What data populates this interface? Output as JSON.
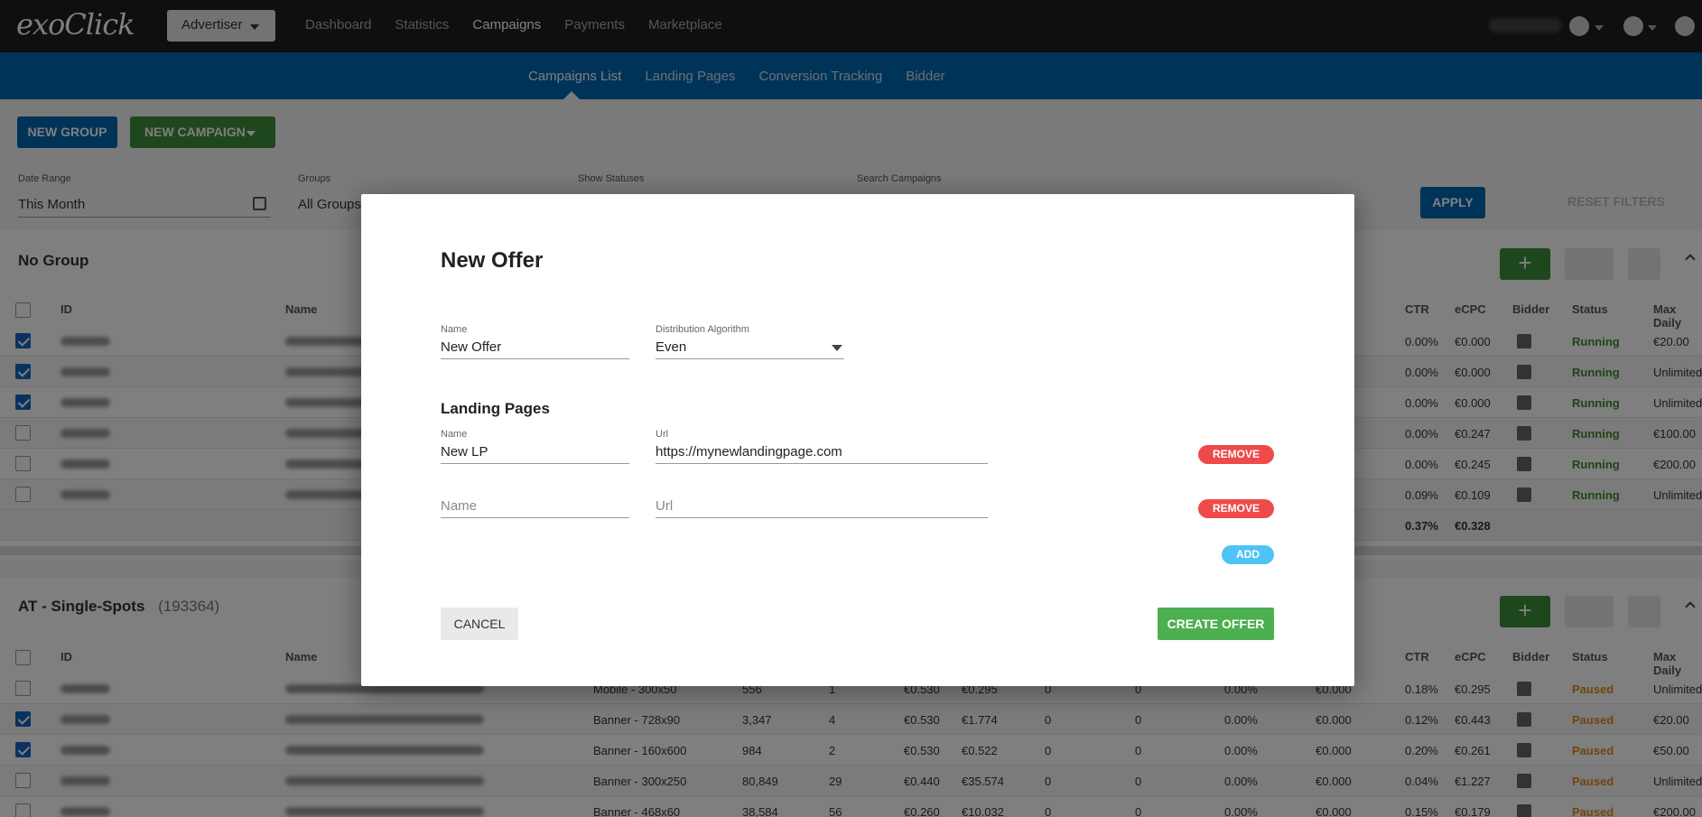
{
  "app": {
    "logo": "exoClick",
    "account_button": "Advertiser"
  },
  "topnav": [
    "Dashboard",
    "Statistics",
    "Campaigns",
    "Payments",
    "Marketplace"
  ],
  "subnav": [
    "Campaigns List",
    "Landing Pages",
    "Conversion Tracking",
    "Bidder"
  ],
  "actions": {
    "new_group": "NEW GROUP",
    "new_campaign": "NEW CAMPAIGN"
  },
  "filters": {
    "date_range_label": "Date Range",
    "date_range_value": "This Month",
    "groups_label": "Groups",
    "groups_value": "All Groups",
    "statuses_label": "Show Statuses",
    "search_label": "Search Campaigns",
    "apply": "APPLY",
    "reset": "RESET FILTERS"
  },
  "groups": [
    {
      "title": "No Group",
      "count": ""
    },
    {
      "title": "AT - Single-Spots",
      "count": "(193364)"
    }
  ],
  "columns": {
    "id": "ID",
    "name": "Name",
    "ctr": "CTR",
    "ecpc": "eCPC",
    "bidder": "Bidder",
    "status": "Status",
    "max_daily": "Max Daily"
  },
  "group1_rows": [
    {
      "checked": true,
      "ctr": "0.00%",
      "ecpc": "€0.000",
      "status": "Running",
      "max": "€20.00"
    },
    {
      "checked": true,
      "ctr": "0.00%",
      "ecpc": "€0.000",
      "status": "Running",
      "max": "Unlimited"
    },
    {
      "checked": true,
      "ctr": "0.00%",
      "ecpc": "€0.000",
      "status": "Running",
      "max": "Unlimited"
    },
    {
      "checked": false,
      "ctr": "0.00%",
      "ecpc": "€0.247",
      "status": "Running",
      "max": "€100.00"
    },
    {
      "checked": false,
      "ctr": "0.00%",
      "ecpc": "€0.245",
      "status": "Running",
      "max": "€200.00"
    },
    {
      "checked": false,
      "ctr": "0.09%",
      "ecpc": "€0.109",
      "status": "Running",
      "max": "Unlimited"
    }
  ],
  "group1_total": {
    "ctr": "0.37%",
    "ecpc": "€0.328"
  },
  "group2_rows": [
    {
      "checked": false,
      "format": "Mobile - 300x50",
      "imp": "556",
      "clk": "1",
      "bid": "€0.530",
      "spend": "€0.295",
      "c1": "0",
      "c2": "0",
      "conv": "0.00%",
      "cost": "€0.000",
      "ctr": "0.18%",
      "ecpc": "€0.295",
      "status": "Paused",
      "max": "Unlimited"
    },
    {
      "checked": true,
      "format": "Banner - 728x90",
      "imp": "3,347",
      "clk": "4",
      "bid": "€0.530",
      "spend": "€1.774",
      "c1": "0",
      "c2": "0",
      "conv": "0.00%",
      "cost": "€0.000",
      "ctr": "0.12%",
      "ecpc": "€0.443",
      "status": "Paused",
      "max": "€20.00"
    },
    {
      "checked": true,
      "format": "Banner - 160x600",
      "imp": "984",
      "clk": "2",
      "bid": "€0.530",
      "spend": "€0.522",
      "c1": "0",
      "c2": "0",
      "conv": "0.00%",
      "cost": "€0.000",
      "ctr": "0.20%",
      "ecpc": "€0.261",
      "status": "Paused",
      "max": "€50.00"
    },
    {
      "checked": false,
      "format": "Banner - 300x250",
      "imp": "80,849",
      "clk": "29",
      "bid": "€0.440",
      "spend": "€35.574",
      "c1": "0",
      "c2": "0",
      "conv": "0.00%",
      "cost": "€0.000",
      "ctr": "0.04%",
      "ecpc": "€1.227",
      "status": "Paused",
      "max": "Unlimited"
    },
    {
      "checked": false,
      "format": "Banner - 468x60",
      "imp": "38,584",
      "clk": "56",
      "bid": "€0.260",
      "spend": "€10.032",
      "c1": "0",
      "c2": "0",
      "conv": "0.00%",
      "cost": "€0.000",
      "ctr": "0.15%",
      "ecpc": "€0.179",
      "status": "Paused",
      "max": "€200.00"
    }
  ],
  "modal": {
    "title": "New Offer",
    "name_label": "Name",
    "name_value": "New Offer",
    "algo_label": "Distribution Algorithm",
    "algo_value": "Even",
    "lp_heading": "Landing Pages",
    "lp1_name_label": "Name",
    "lp1_name_value": "New LP",
    "lp1_url_label": "Url",
    "lp1_url_value": "https://mynewlandingpage.com",
    "lp2_name_placeholder": "Name",
    "lp2_url_placeholder": "Url",
    "remove": "REMOVE",
    "add": "ADD",
    "cancel": "CANCEL",
    "create": "CREATE OFFER"
  },
  "colors": {
    "nav": "#1f1f1f",
    "subnav": "#0067b1",
    "green": "#4caf50",
    "blue": "#0067b1",
    "remove": "#ef4a4a",
    "add": "#4fc3f7"
  }
}
